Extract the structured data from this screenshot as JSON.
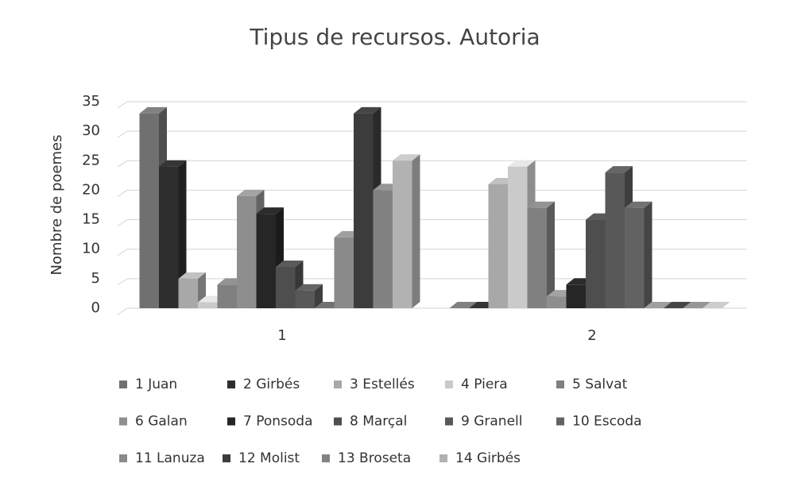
{
  "chart_data": {
    "type": "bar3d",
    "title": "Tipus de recursos. Autoria",
    "y_label": "Nombre de poemes",
    "categories": [
      "1",
      "2"
    ],
    "ylim": [
      0,
      35
    ],
    "yticks": [
      0,
      5,
      10,
      15,
      20,
      25,
      30,
      35
    ],
    "grid": true,
    "series": [
      {
        "name": "1 Juan",
        "color": "#707070",
        "values": [
          33,
          0
        ]
      },
      {
        "name": "2 Girbés",
        "color": "#2e2e2e",
        "values": [
          24,
          0
        ]
      },
      {
        "name": "3 Estellés",
        "color": "#a8a8a8",
        "values": [
          5,
          21
        ]
      },
      {
        "name": "4 Piera",
        "color": "#cacaca",
        "values": [
          1,
          24
        ]
      },
      {
        "name": "5 Salvat",
        "color": "#808080",
        "values": [
          4,
          17
        ]
      },
      {
        "name": "6 Galan",
        "color": "#8e8e8e",
        "values": [
          19,
          2
        ]
      },
      {
        "name": "7 Ponsoda",
        "color": "#262626",
        "values": [
          16,
          4
        ]
      },
      {
        "name": "8 Marçal",
        "color": "#4e4e4e",
        "values": [
          7,
          15
        ]
      },
      {
        "name": "9 Granell",
        "color": "#585858",
        "values": [
          3,
          23
        ]
      },
      {
        "name": "10 Escoda",
        "color": "#626262",
        "values": [
          0,
          17
        ]
      },
      {
        "name": "11 Lanuza",
        "color": "#8a8a8a",
        "values": [
          12,
          0
        ]
      },
      {
        "name": "12 Molist",
        "color": "#3c3c3c",
        "values": [
          33,
          0
        ]
      },
      {
        "name": "13 Broseta",
        "color": "#828282",
        "values": [
          20,
          0
        ]
      },
      {
        "name": "14 Girbés",
        "color": "#b2b2b2",
        "values": [
          25,
          0
        ]
      }
    ]
  }
}
